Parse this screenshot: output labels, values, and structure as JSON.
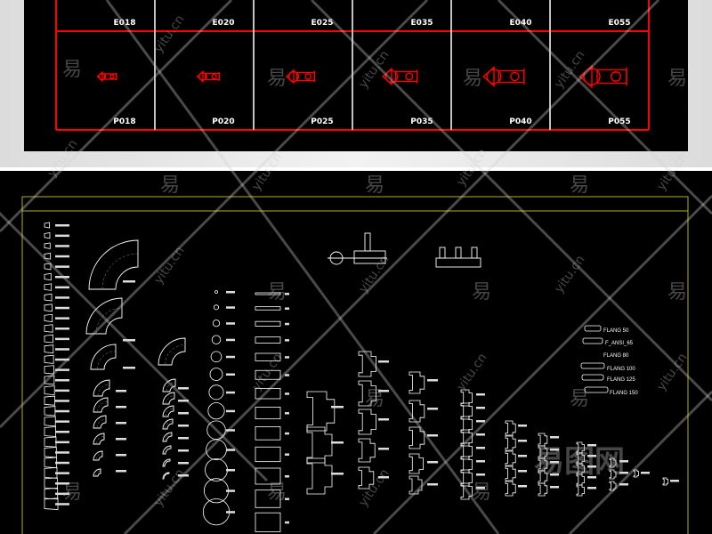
{
  "top_table": {
    "border_color": "#ff0000",
    "e_labels": [
      "E018",
      "E020",
      "E025",
      "E035",
      "E040",
      "E055"
    ],
    "p_labels": [
      "P018",
      "P020",
      "P025",
      "P035",
      "P040",
      "P055"
    ]
  },
  "drawing": {
    "frame_color": "#b5b020",
    "line_color": "#ffffff",
    "flange_labels": [
      "FLANG 50",
      "F_ANSI_65",
      "FLANG 80",
      "FLANG 100",
      "FLANG 125",
      "FLANG 150"
    ]
  },
  "watermark": {
    "text": "yitu.cn",
    "glyph": "易",
    "logo": "易图网"
  }
}
